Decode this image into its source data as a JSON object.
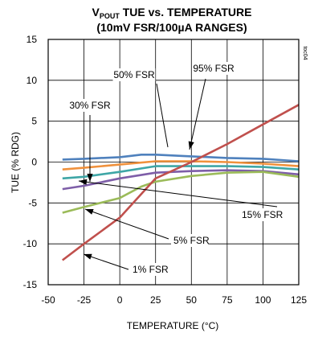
{
  "chart_data": {
    "type": "line",
    "title": {
      "base": "V",
      "subscript": "POUT",
      "rest": " TUE vs. TEMPERATURE",
      "line2": "(10mV FSR/100µA RANGES)"
    },
    "xlabel": "TEMPERATURE (°C)",
    "ylabel": "TUE (% RDG)",
    "xlim": [
      -50,
      125
    ],
    "ylim": [
      -15,
      15
    ],
    "xticks": [
      -50,
      -25,
      0,
      25,
      50,
      75,
      100,
      125
    ],
    "yticks": [
      -15,
      -10,
      -5,
      0,
      5,
      10,
      15
    ],
    "grid": true,
    "figure_id": "toc04",
    "series": [
      {
        "name": "95% FSR",
        "color": "#4f81bd",
        "x": [
          -40,
          -25,
          0,
          15,
          25,
          50,
          75,
          100,
          125
        ],
        "y": [
          0.3,
          0.4,
          0.6,
          0.9,
          0.9,
          0.7,
          0.5,
          0.4,
          0.1
        ]
      },
      {
        "name": "50% FSR",
        "color": "#f0913c",
        "x": [
          -40,
          -25,
          0,
          25,
          50,
          75,
          100,
          125
        ],
        "y": [
          -0.9,
          -0.7,
          -0.3,
          0.1,
          0.1,
          0.0,
          -0.2,
          -0.5
        ]
      },
      {
        "name": "30% FSR",
        "color": "#3ea6a6",
        "x": [
          -40,
          -25,
          0,
          25,
          50,
          75,
          100,
          125
        ],
        "y": [
          -2.0,
          -1.8,
          -1.2,
          -0.5,
          -0.5,
          -0.5,
          -0.6,
          -0.9
        ]
      },
      {
        "name": "15% FSR",
        "color": "#7e5ea8",
        "x": [
          -40,
          -25,
          0,
          25,
          50,
          75,
          100,
          125
        ],
        "y": [
          -3.3,
          -2.9,
          -2.0,
          -1.3,
          -1.1,
          -1.0,
          -1.1,
          -1.5
        ]
      },
      {
        "name": "5% FSR",
        "color": "#9bbb59",
        "x": [
          -40,
          -25,
          0,
          15,
          25,
          50,
          75,
          100,
          125
        ],
        "y": [
          -6.2,
          -5.5,
          -4.4,
          -3.0,
          -2.4,
          -1.7,
          -1.3,
          -1.2,
          -1.8
        ]
      },
      {
        "name": "1% FSR",
        "color": "#c0504d",
        "x": [
          -40,
          -25,
          0,
          25,
          50,
          75,
          100,
          125
        ],
        "y": [
          -12.0,
          -10.0,
          -6.8,
          -2.0,
          0.0,
          2.2,
          4.6,
          7.0
        ]
      }
    ],
    "annotations": [
      {
        "label": "50% FSR",
        "series": "50% FSR"
      },
      {
        "label": "95% FSR",
        "series": "95% FSR"
      },
      {
        "label": "30% FSR",
        "series": "30% FSR"
      },
      {
        "label": "15% FSR",
        "series": "15% FSR"
      },
      {
        "label": "5% FSR",
        "series": "5% FSR"
      },
      {
        "label": "1% FSR",
        "series": "1% FSR"
      }
    ]
  }
}
